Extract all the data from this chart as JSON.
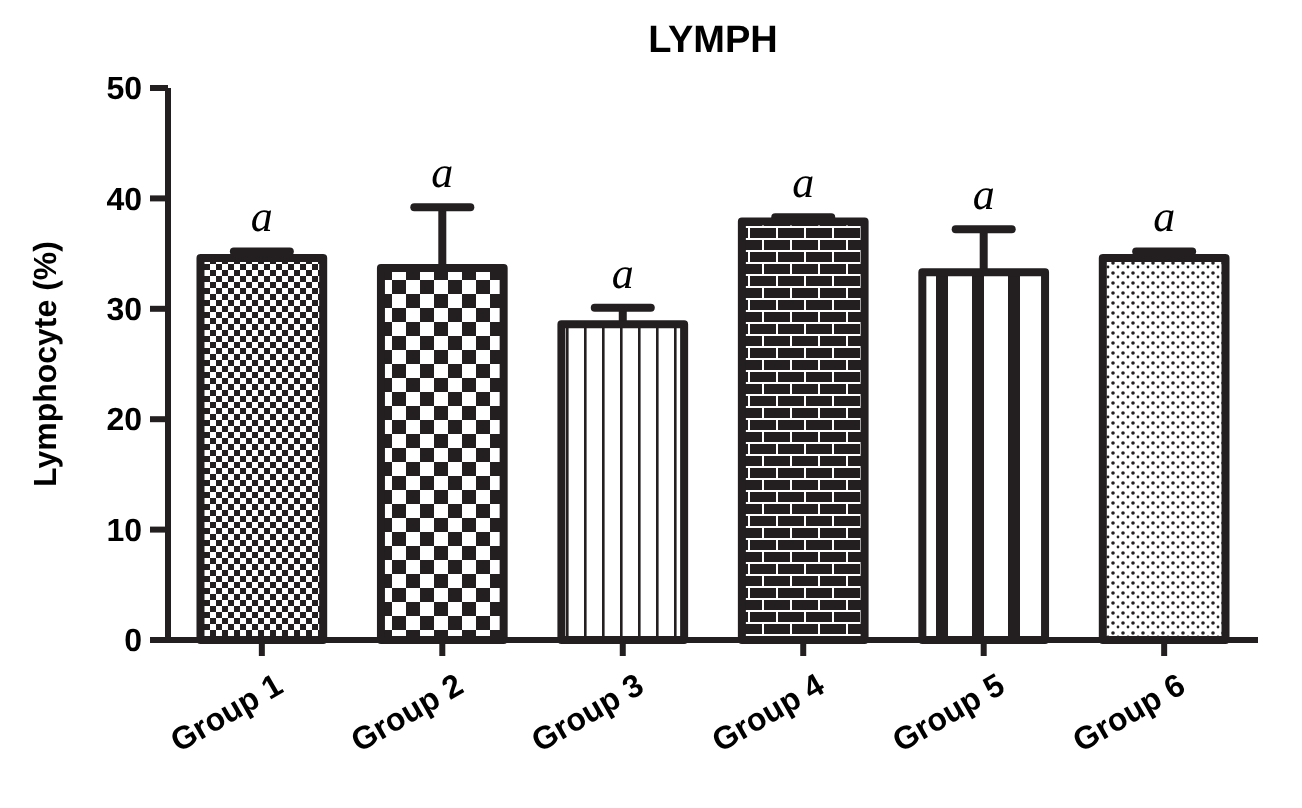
{
  "chart_data": {
    "type": "bar",
    "title": "LYMPH",
    "ylabel": "Lymphocyte (%)",
    "categories": [
      "Group 1",
      "Group 2",
      "Group 3",
      "Group 4",
      "Group 5",
      "Group 6"
    ],
    "values": [
      34.6,
      33.7,
      28.6,
      37.9,
      33.3,
      34.6
    ],
    "errors": [
      [
        34.6,
        35.2
      ],
      [
        33.7,
        39.2
      ],
      [
        28.6,
        30.1
      ],
      [
        37.9,
        38.3
      ],
      [
        33.3,
        37.2
      ],
      [
        34.6,
        35.2
      ]
    ],
    "color": "#231f20",
    "ylim": [
      0,
      50
    ],
    "yticks": [
      0,
      10,
      20,
      30,
      40,
      50
    ],
    "grid": false,
    "annotations": [
      {
        "text": "a",
        "x": "Group 1",
        "y": 35.2
      },
      {
        "text": "a",
        "x": "Group 2",
        "y": 39.2
      },
      {
        "text": "a",
        "x": "Group 3",
        "y": 30.1
      },
      {
        "text": "a",
        "x": "Group 4",
        "y": 38.3
      },
      {
        "text": "a",
        "x": "Group 5",
        "y": 37.2
      },
      {
        "text": "a",
        "x": "Group 6",
        "y": 35.2
      }
    ]
  }
}
